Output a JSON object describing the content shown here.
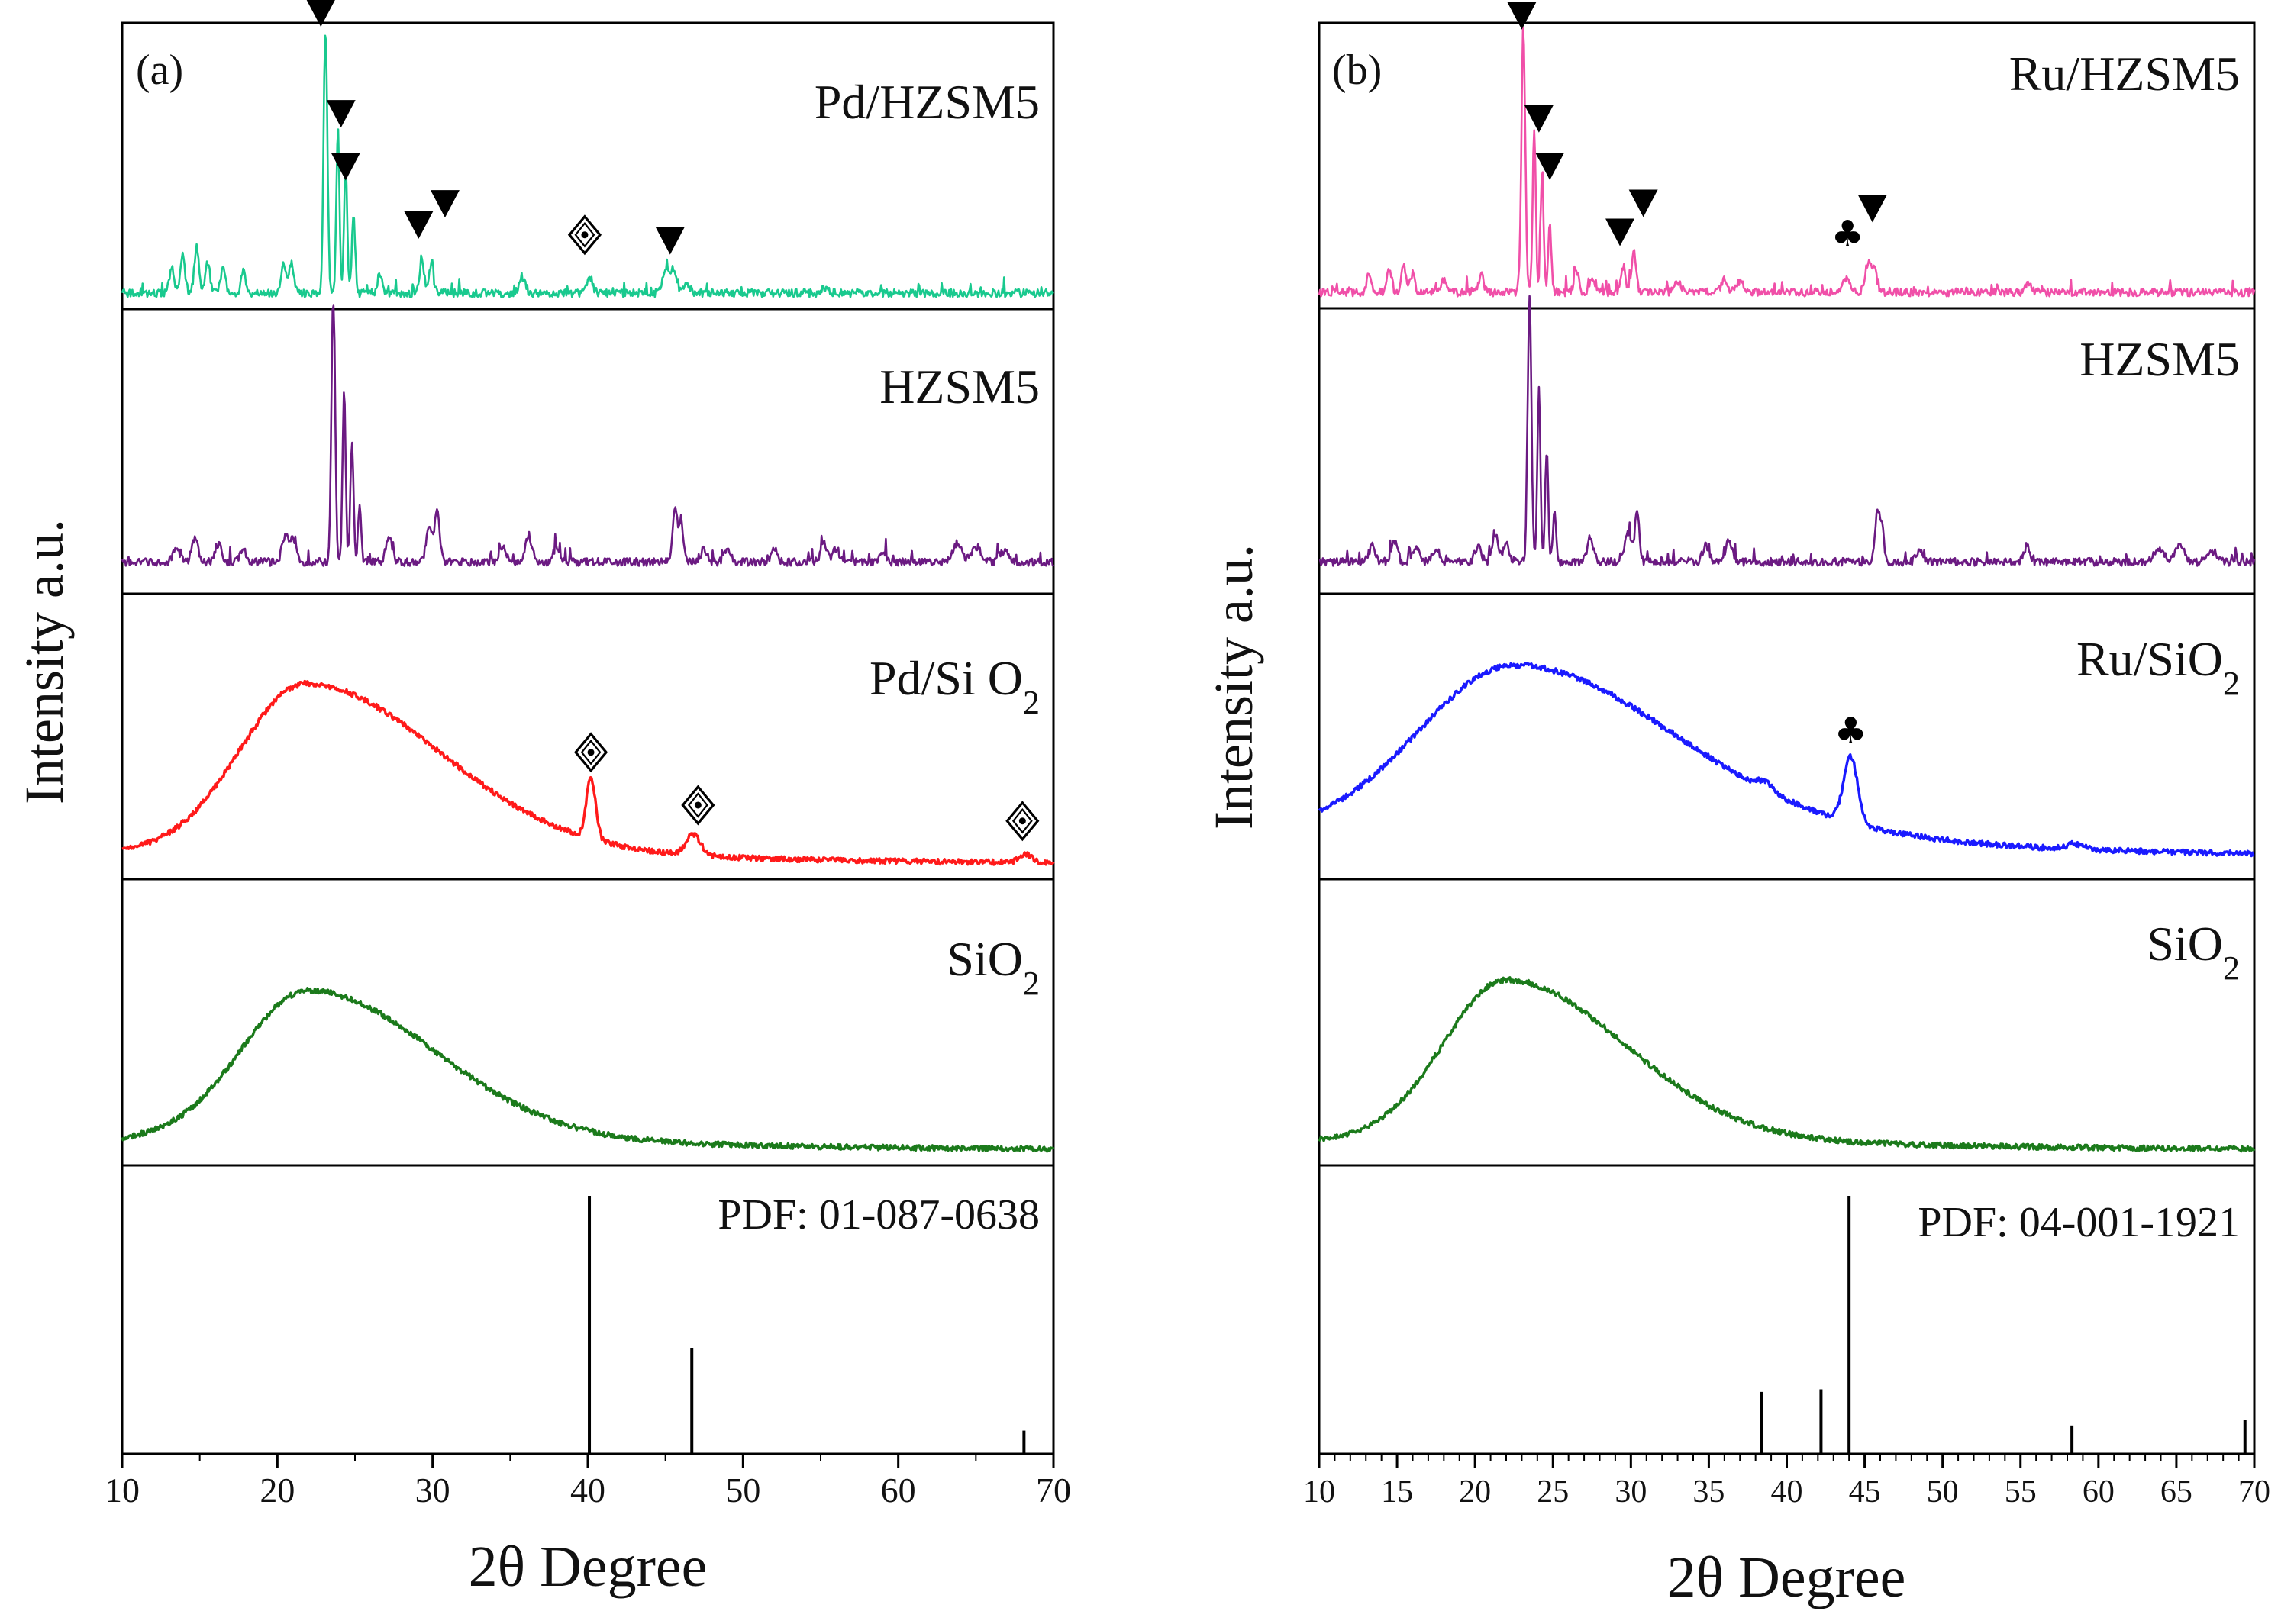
{
  "chart_data": [
    {
      "type": "line",
      "panel_label": "(a)",
      "xlabel": "2θ Degree",
      "ylabel": "Intensity a.u.",
      "xlim": [
        10,
        70
      ],
      "xticks": [
        10,
        20,
        30,
        40,
        50,
        60,
        70
      ],
      "xticks_minor": [
        15,
        25,
        35,
        45,
        55,
        65
      ],
      "grid": false,
      "stacked_panels": [
        {
          "label": "Pd/HZSM5",
          "color": "#19c98e",
          "pattern": "zeolite",
          "baseline": 0.02,
          "peaks": [
            [
              23.1,
              1.0,
              0.12
            ],
            [
              23.9,
              0.62,
              0.1
            ],
            [
              24.4,
              0.5,
              0.1
            ],
            [
              24.9,
              0.3,
              0.1
            ],
            [
              13.2,
              0.1,
              0.15
            ],
            [
              13.9,
              0.14,
              0.15
            ],
            [
              14.8,
              0.17,
              0.15
            ],
            [
              15.5,
              0.12,
              0.15
            ],
            [
              16.5,
              0.09,
              0.15
            ],
            [
              17.8,
              0.08,
              0.15
            ],
            [
              20.4,
              0.12,
              0.15
            ],
            [
              20.9,
              0.11,
              0.15
            ],
            [
              26.6,
              0.07,
              0.15
            ],
            [
              29.3,
              0.12,
              0.15
            ],
            [
              29.9,
              0.1,
              0.15
            ],
            [
              35.8,
              0.05,
              0.2
            ],
            [
              40.1,
              0.06,
              0.2
            ],
            [
              45.0,
              0.09,
              0.2
            ],
            [
              45.5,
              0.09,
              0.2
            ],
            [
              46.4,
              0.03,
              0.2
            ],
            [
              55.3,
              0.02,
              0.25
            ]
          ],
          "markers": [
            {
              "symbol": "▼",
              "x": 22.8,
              "level": 1.08
            },
            {
              "symbol": "▼",
              "x": 24.1,
              "level": 0.7
            },
            {
              "symbol": "▼",
              "x": 24.4,
              "level": 0.5
            },
            {
              "symbol": "▼",
              "x": 29.1,
              "level": 0.28
            },
            {
              "symbol": "▼",
              "x": 30.8,
              "level": 0.36
            },
            {
              "symbol": "◈",
              "x": 39.8,
              "level": 0.24
            },
            {
              "symbol": "▼",
              "x": 45.3,
              "level": 0.22
            }
          ]
        },
        {
          "label": "HZSM5",
          "color": "#6b1a82",
          "pattern": "zeolite",
          "baseline": 0.08,
          "peaks": [
            [
              23.6,
              1.0,
              0.12
            ],
            [
              24.3,
              0.65,
              0.1
            ],
            [
              24.8,
              0.45,
              0.1
            ],
            [
              25.3,
              0.22,
              0.1
            ],
            [
              13.5,
              0.06,
              0.2
            ],
            [
              14.7,
              0.09,
              0.2
            ],
            [
              16.2,
              0.07,
              0.2
            ],
            [
              17.8,
              0.05,
              0.2
            ],
            [
              20.5,
              0.1,
              0.2
            ],
            [
              21.0,
              0.08,
              0.2
            ],
            [
              27.2,
              0.1,
              0.2
            ],
            [
              29.8,
              0.14,
              0.2
            ],
            [
              30.3,
              0.2,
              0.15
            ],
            [
              34.5,
              0.06,
              0.2
            ],
            [
              36.2,
              0.1,
              0.2
            ],
            [
              38.0,
              0.06,
              0.2
            ],
            [
              45.6,
              0.2,
              0.15
            ],
            [
              46.0,
              0.16,
              0.15
            ],
            [
              47.5,
              0.05,
              0.2
            ],
            [
              49.0,
              0.05,
              0.2
            ],
            [
              52.0,
              0.05,
              0.2
            ],
            [
              55.2,
              0.08,
              0.2
            ],
            [
              56.0,
              0.05,
              0.2
            ],
            [
              59.0,
              0.04,
              0.2
            ],
            [
              63.8,
              0.07,
              0.3
            ],
            [
              65.0,
              0.06,
              0.3
            ],
            [
              66.8,
              0.04,
              0.3
            ]
          ]
        },
        {
          "label": "Pd/SiO2",
          "label_text": "Pd/Si O",
          "label_subscript": "2",
          "color": "#ff1a1a",
          "pattern": "amorphous",
          "baseline": 0.02,
          "hump": {
            "center": 21.8,
            "height": 0.63,
            "width_left": 4.2,
            "width_right": 8.5
          },
          "tail": 0.05,
          "peaks": [
            [
              40.2,
              0.23,
              0.3
            ],
            [
              46.8,
              0.08,
              0.45
            ],
            [
              68.2,
              0.03,
              0.4
            ]
          ],
          "markers": [
            {
              "symbol": "◈",
              "x": 40.2,
              "level": 0.44
            },
            {
              "symbol": "◈",
              "x": 47.1,
              "level": 0.24
            },
            {
              "symbol": "◈",
              "x": 68.0,
              "level": 0.18
            }
          ]
        },
        {
          "label": "SiO2",
          "label_text": "SiO",
          "label_subscript": "2",
          "color": "#1b7a1b",
          "pattern": "amorphous",
          "baseline": 0.02,
          "hump": {
            "center": 22.0,
            "height": 0.56,
            "width_left": 4.3,
            "width_right": 8.0
          },
          "tail": 0.04,
          "peaks": []
        }
      ],
      "reference": {
        "label": "PDF: 01-087-0638",
        "lines": [
          {
            "x": 40.1,
            "intensity": 100
          },
          {
            "x": 46.7,
            "intensity": 41
          },
          {
            "x": 68.1,
            "intensity": 9
          }
        ]
      }
    },
    {
      "type": "line",
      "panel_label": "(b)",
      "xlabel": "2θ Degree",
      "ylabel": "Intensity a.u.",
      "xlim": [
        10,
        70
      ],
      "xticks": [
        10,
        15,
        20,
        25,
        30,
        35,
        40,
        45,
        50,
        55,
        60,
        65,
        70
      ],
      "xticks_minor": [
        11,
        12,
        13,
        14,
        16,
        17,
        18,
        19,
        21,
        22,
        23,
        24,
        26,
        27,
        28,
        29,
        31,
        32,
        33,
        34,
        36,
        37,
        38,
        39,
        41,
        42,
        43,
        44,
        46,
        47,
        48,
        49,
        51,
        52,
        53,
        54,
        56,
        57,
        58,
        59,
        61,
        62,
        63,
        64,
        66,
        67,
        68,
        69
      ],
      "grid": false,
      "stacked_panels": [
        {
          "label": "Ru/HZSM5",
          "color": "#f04fa8",
          "pattern": "zeolite",
          "baseline": 0.02,
          "peaks": [
            [
              23.1,
              1.0,
              0.12
            ],
            [
              23.8,
              0.62,
              0.1
            ],
            [
              24.3,
              0.45,
              0.1
            ],
            [
              24.8,
              0.25,
              0.1
            ],
            [
              13.2,
              0.07,
              0.15
            ],
            [
              14.5,
              0.09,
              0.15
            ],
            [
              15.4,
              0.1,
              0.15
            ],
            [
              16.0,
              0.07,
              0.15
            ],
            [
              18.0,
              0.05,
              0.15
            ],
            [
              20.4,
              0.07,
              0.15
            ],
            [
              26.5,
              0.08,
              0.15
            ],
            [
              27.5,
              0.06,
              0.15
            ],
            [
              29.5,
              0.1,
              0.15
            ],
            [
              30.2,
              0.15,
              0.15
            ],
            [
              33.0,
              0.04,
              0.2
            ],
            [
              36.0,
              0.05,
              0.2
            ],
            [
              37.0,
              0.04,
              0.2
            ],
            [
              43.8,
              0.05,
              0.2
            ],
            [
              45.2,
              0.1,
              0.2
            ],
            [
              45.6,
              0.08,
              0.2
            ],
            [
              55.5,
              0.03,
              0.2
            ]
          ],
          "markers": [
            {
              "symbol": "▼",
              "x": 23.0,
              "level": 1.07
            },
            {
              "symbol": "▼",
              "x": 24.1,
              "level": 0.68
            },
            {
              "symbol": "▼",
              "x": 24.8,
              "level": 0.5
            },
            {
              "symbol": "▼",
              "x": 29.3,
              "level": 0.25
            },
            {
              "symbol": "▼",
              "x": 30.8,
              "level": 0.36
            },
            {
              "symbol": "♣",
              "x": 43.9,
              "level": 0.24
            },
            {
              "symbol": "▼",
              "x": 45.5,
              "level": 0.34
            }
          ]
        },
        {
          "label": "HZSM5",
          "color": "#6b1a82",
          "pattern": "zeolite",
          "baseline": 0.08,
          "peaks": [
            [
              23.5,
              1.0,
              0.12
            ],
            [
              24.1,
              0.65,
              0.1
            ],
            [
              24.6,
              0.42,
              0.1
            ],
            [
              25.1,
              0.2,
              0.1
            ],
            [
              13.4,
              0.06,
              0.2
            ],
            [
              14.8,
              0.08,
              0.2
            ],
            [
              16.2,
              0.06,
              0.2
            ],
            [
              17.5,
              0.05,
              0.2
            ],
            [
              20.2,
              0.06,
              0.2
            ],
            [
              21.3,
              0.09,
              0.2
            ],
            [
              22.0,
              0.07,
              0.2
            ],
            [
              27.4,
              0.09,
              0.2
            ],
            [
              29.8,
              0.12,
              0.2
            ],
            [
              30.4,
              0.18,
              0.15
            ],
            [
              34.8,
              0.06,
              0.2
            ],
            [
              36.3,
              0.08,
              0.2
            ],
            [
              45.8,
              0.18,
              0.15
            ],
            [
              46.1,
              0.12,
              0.15
            ],
            [
              48.5,
              0.04,
              0.2
            ],
            [
              55.4,
              0.06,
              0.2
            ],
            [
              63.9,
              0.05,
              0.3
            ],
            [
              65.2,
              0.06,
              0.3
            ],
            [
              67.3,
              0.04,
              0.3
            ]
          ]
        },
        {
          "label": "Ru/SiO2",
          "label_text": "Ru/SiO",
          "label_subscript": "2",
          "color": "#1a1aff",
          "pattern": "amorphous",
          "baseline": 0.05,
          "hump": {
            "center": 22.5,
            "height": 0.6,
            "width_left": 6.0,
            "width_right": 10.0
          },
          "tail": 0.12,
          "peaks": [
            [
              44.1,
              0.25,
              0.45
            ],
            [
              38.6,
              0.03,
              0.5
            ],
            [
              58.5,
              0.02,
              0.5
            ]
          ],
          "markers": [
            {
              "symbol": "♣",
              "x": 44.1,
              "level": 0.52
            }
          ]
        },
        {
          "label": "SiO2",
          "label_text": "SiO",
          "label_subscript": "2",
          "color": "#1b7a1b",
          "pattern": "amorphous",
          "baseline": 0.02,
          "hump": {
            "center": 22.0,
            "height": 0.6,
            "width_left": 4.0,
            "width_right": 7.5
          },
          "tail": 0.04,
          "peaks": []
        }
      ],
      "reference": {
        "label": "PDF: 04-001-1921",
        "lines": [
          {
            "x": 38.4,
            "intensity": 24
          },
          {
            "x": 42.2,
            "intensity": 25
          },
          {
            "x": 44.0,
            "intensity": 100
          },
          {
            "x": 58.3,
            "intensity": 11
          },
          {
            "x": 69.4,
            "intensity": 13
          }
        ]
      }
    }
  ]
}
